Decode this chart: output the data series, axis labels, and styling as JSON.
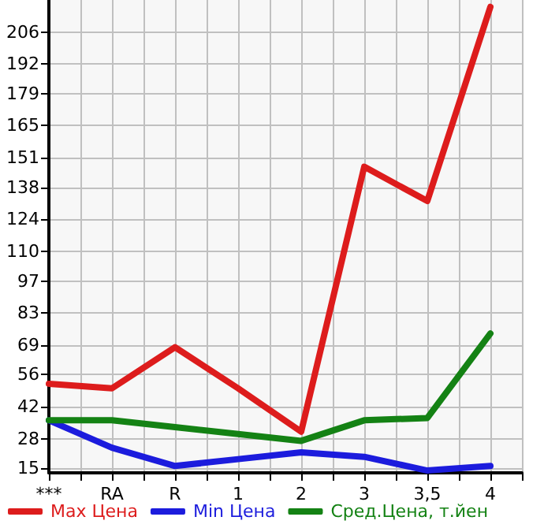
{
  "chart_data": {
    "type": "line",
    "categories": [
      "***",
      "RA",
      "R",
      "1",
      "2",
      "3",
      "3,5",
      "4"
    ],
    "series": [
      {
        "name": "Max Цена",
        "color": "#dd1c1c",
        "values": [
          52,
          50,
          68,
          50,
          31,
          147,
          132,
          217
        ]
      },
      {
        "name": "Min Цена",
        "color": "#1c1cdd",
        "values": [
          36,
          24,
          16,
          19,
          22,
          20,
          14,
          16
        ]
      },
      {
        "name": "Сред.Цена, т.йен",
        "color": "#148214",
        "values": [
          36,
          36,
          33,
          30,
          27,
          36,
          37,
          74
        ]
      }
    ],
    "ylim": [
      13,
      220
    ],
    "yticks": [
      15,
      28,
      42,
      56,
      69,
      83,
      97,
      110,
      124,
      138,
      151,
      165,
      179,
      192,
      206
    ],
    "grid": true,
    "legend": "bottom",
    "marker": "none",
    "line_style": "solid"
  }
}
